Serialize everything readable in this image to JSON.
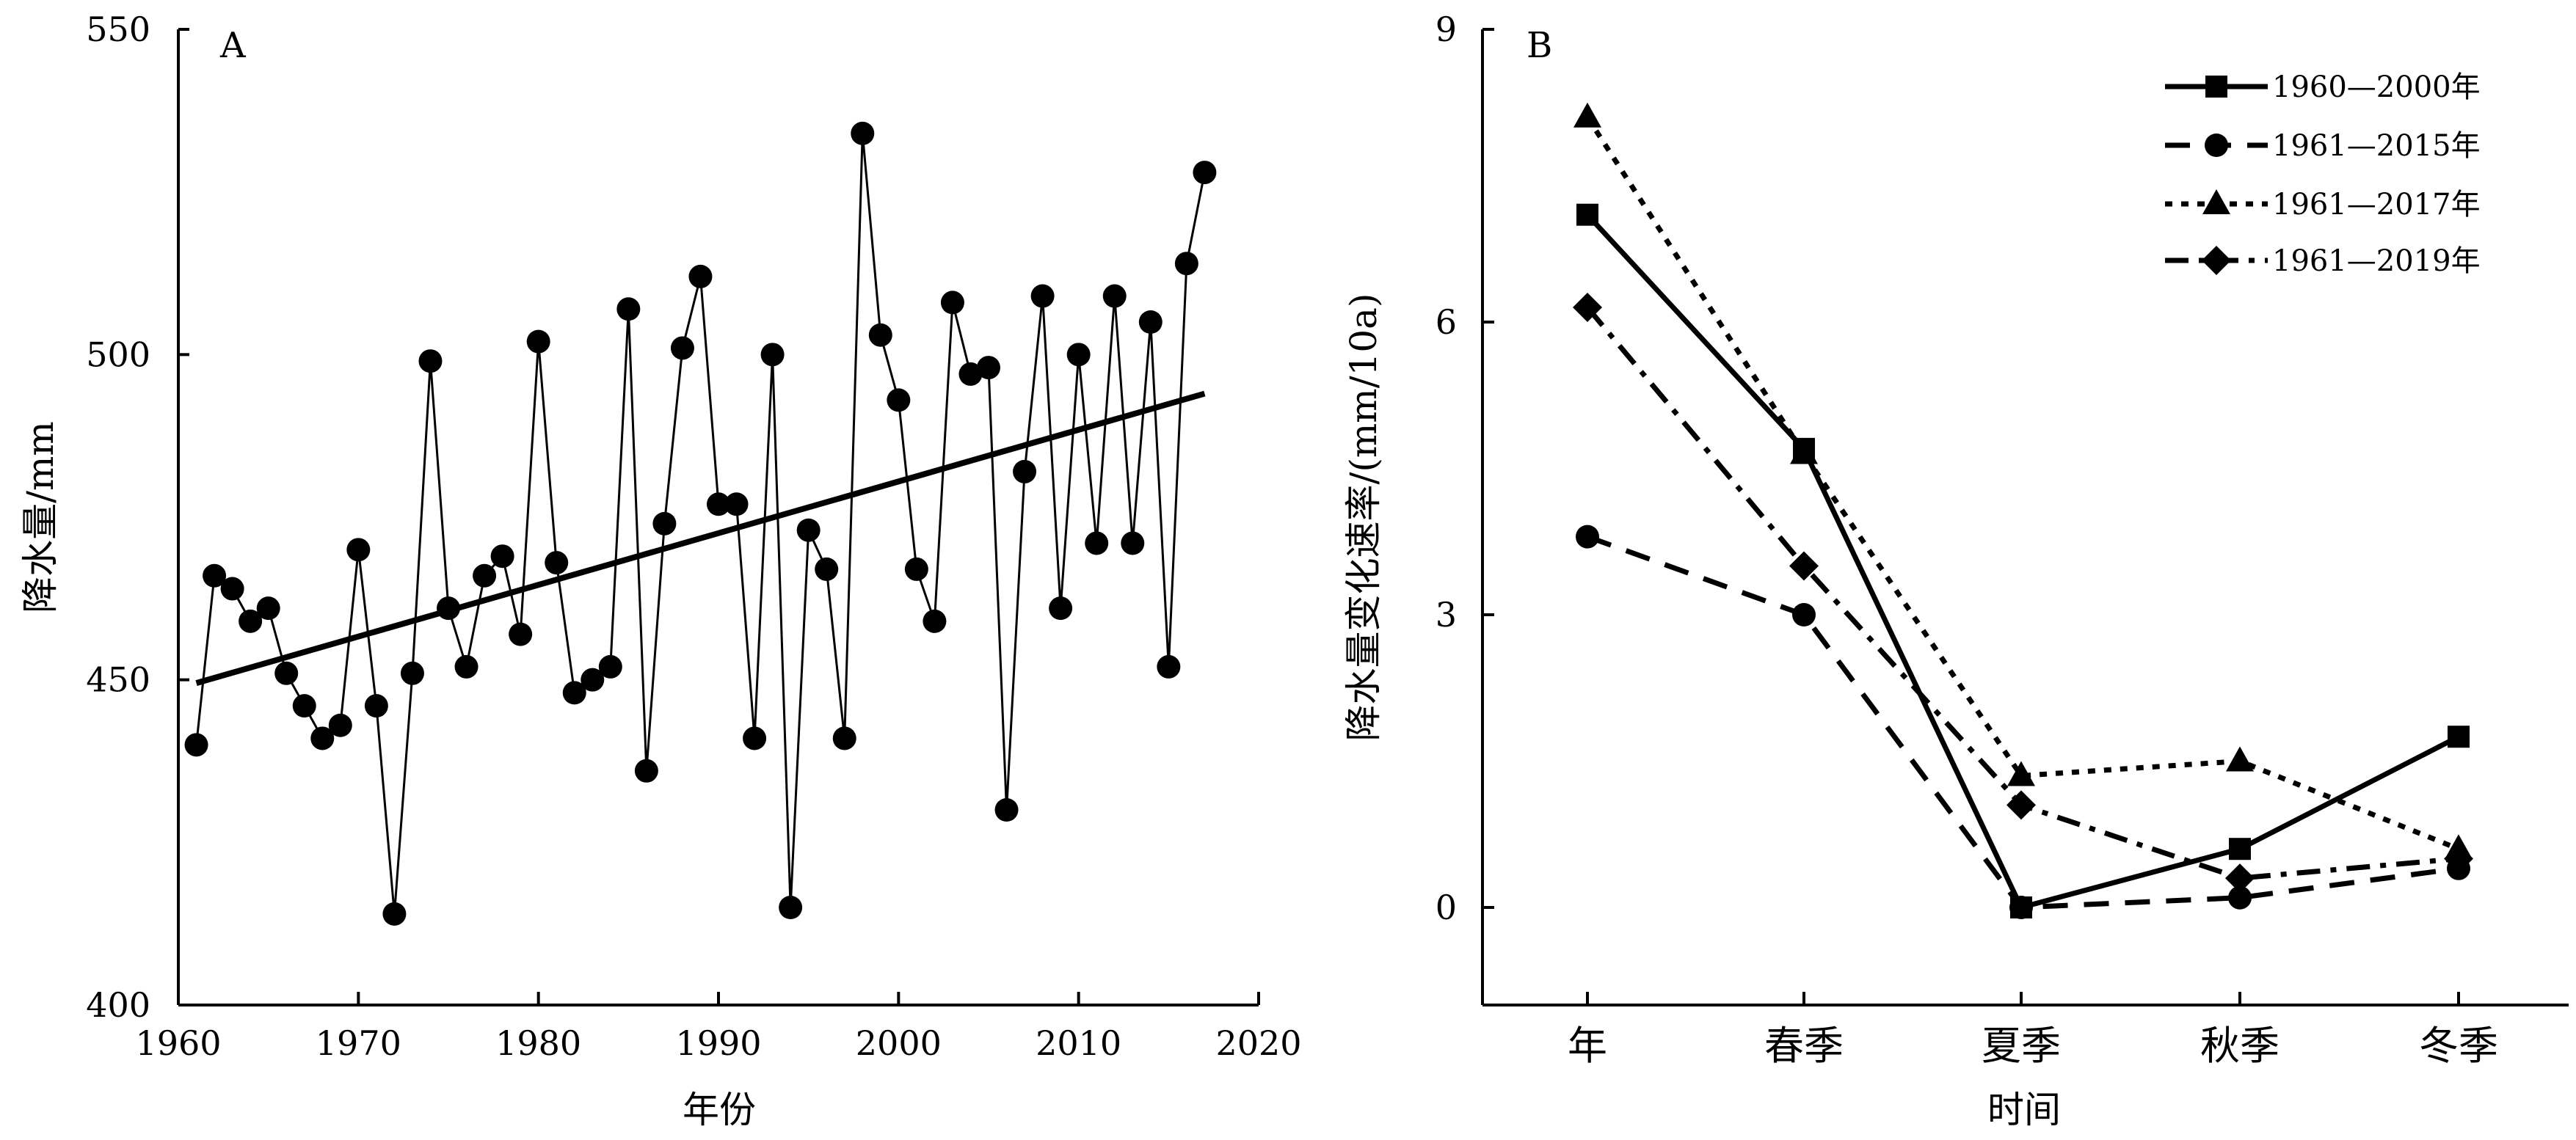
{
  "chart_data": [
    {
      "panel": "A",
      "type": "line",
      "xlabel": "年份",
      "ylabel": "降水量/mm",
      "xlim": [
        1960,
        2020
      ],
      "ylim": [
        400,
        550
      ],
      "xticks": [
        1960,
        1970,
        1980,
        1990,
        2000,
        2010,
        2020
      ],
      "yticks": [
        400,
        450,
        500,
        550
      ],
      "series": [
        {
          "x": [
            1961,
            1962,
            1963,
            1964,
            1965,
            1966,
            1967,
            1968,
            1969,
            1970,
            1971,
            1972,
            1973,
            1974,
            1975,
            1976,
            1977,
            1978,
            1979,
            1980,
            1981,
            1982,
            1983,
            1984,
            1985,
            1986,
            1987,
            1988,
            1989,
            1990,
            1991,
            1992,
            1993,
            1994,
            1995,
            1996,
            1997,
            1998,
            1999,
            2000,
            2001,
            2002,
            2003,
            2004,
            2005,
            2006,
            2007,
            2008,
            2009,
            2010,
            2011,
            2012,
            2013,
            2014,
            2015,
            2016,
            2017
          ],
          "values": [
            440,
            466,
            464,
            459,
            461,
            451,
            446,
            441,
            443,
            470,
            446,
            414,
            451,
            499,
            461,
            452,
            466,
            469,
            457,
            502,
            468,
            448,
            450,
            452,
            507,
            436,
            474,
            501,
            512,
            477,
            477,
            441,
            500,
            415,
            473,
            467,
            441,
            534,
            503,
            493,
            467,
            459,
            508,
            497,
            498,
            430,
            482,
            509,
            461,
            500,
            471,
            509,
            471,
            505,
            452,
            514,
            528
          ],
          "marker": "circle",
          "line": "solid-thin"
        },
        {
          "x": [
            1961,
            2017
          ],
          "values": [
            449.5,
            494
          ],
          "line": "solid-thick"
        }
      ]
    },
    {
      "panel": "B",
      "type": "line",
      "xlabel": "时间",
      "ylabel": "降水量变化速率/(mm/10a)",
      "categories": [
        "年",
        "春季",
        "夏季",
        "秋季",
        "冬季"
      ],
      "ylim": [
        -1,
        9
      ],
      "yticks": [
        0,
        3,
        6,
        9
      ],
      "legend_position": "top-right",
      "series": [
        {
          "name": "1960—2000年",
          "values": [
            7.1,
            4.7,
            0,
            0.6,
            1.75
          ],
          "marker": "square",
          "line": "solid"
        },
        {
          "name": "1961—2015年",
          "values": [
            3.8,
            3.0,
            0,
            0.1,
            0.4
          ],
          "marker": "circle",
          "line": "dashed"
        },
        {
          "name": "1961—2017年",
          "values": [
            8.1,
            4.65,
            1.35,
            1.5,
            0.6
          ],
          "marker": "triangle",
          "line": "dotted"
        },
        {
          "name": "1961—2019年",
          "values": [
            6.15,
            3.5,
            1.05,
            0.3,
            0.5
          ],
          "marker": "diamond",
          "line": "dashdot"
        }
      ]
    }
  ]
}
